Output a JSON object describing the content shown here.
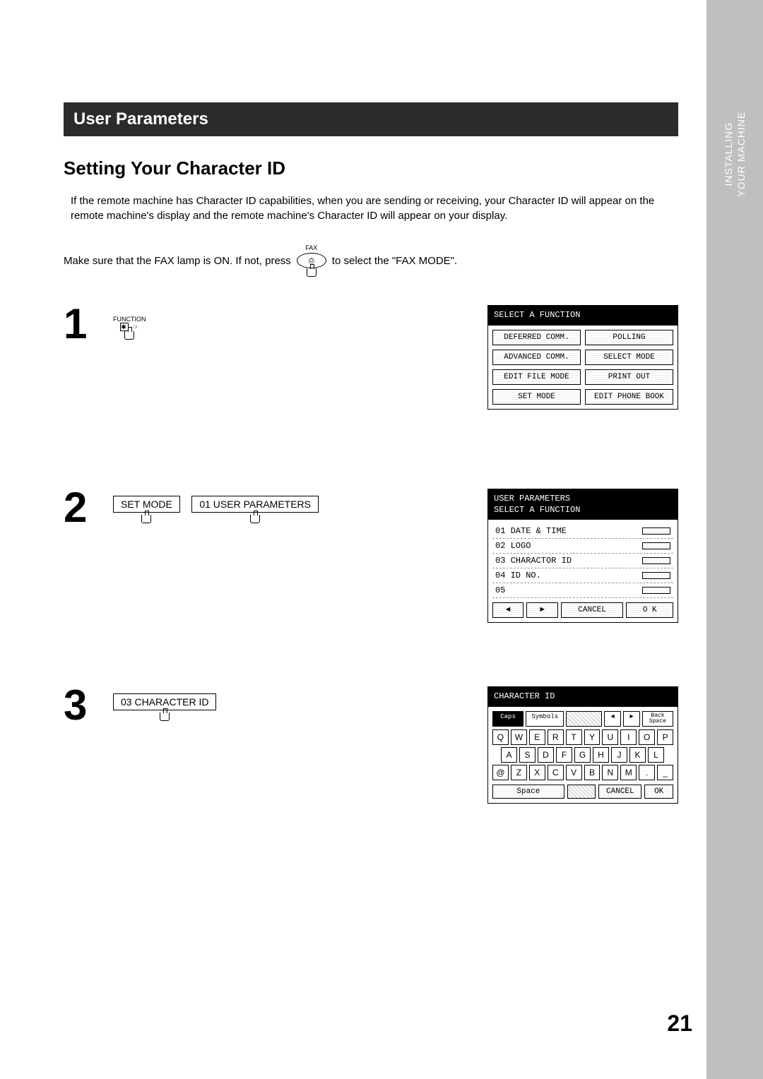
{
  "sideTab": {
    "line1": "INSTALLING",
    "line2": "YOUR MACHINE"
  },
  "header": "User Parameters",
  "subhead": "Setting Your Character ID",
  "intro": "If the remote machine has Character ID capabilities, when you are sending or receiving, your Character ID will appear on the remote machine's display and the remote machine's Character ID will appear on your display.",
  "faxLine": {
    "pre": "Make sure that the FAX lamp is ON.  If not, press",
    "btnTop": "FAX",
    "post": "to select the \"FAX MODE\"."
  },
  "step1": {
    "num": "1",
    "funcLabel": "FUNCTION",
    "screenTitle": "SELECT A FUNCTION",
    "cells": [
      "DEFERRED COMM.",
      "POLLING",
      "ADVANCED COMM.",
      "SELECT MODE",
      "EDIT FILE MODE",
      "PRINT OUT",
      "SET MODE",
      "EDIT PHONE BOOK"
    ]
  },
  "step2": {
    "num": "2",
    "btn1": "SET MODE",
    "btn2": "01  USER PARAMETERS",
    "screenTitle1": "USER PARAMETERS",
    "screenTitle2": "SELECT A FUNCTION",
    "items": [
      "01 DATE & TIME",
      "02 LOGO",
      "03 CHARACTOR ID",
      "04 ID NO.",
      "05"
    ],
    "nav": {
      "left": "◄",
      "right": "►",
      "cancel": "CANCEL",
      "ok": "O K"
    }
  },
  "step3": {
    "num": "3",
    "btn": "03 CHARACTER ID",
    "screenTitle": "CHARACTER ID",
    "topKeys": {
      "caps": "Caps",
      "symbols": "Symbols",
      "left": "◄",
      "right": "►",
      "back": "Back Space"
    },
    "row1": [
      "Q",
      "W",
      "E",
      "R",
      "T",
      "Y",
      "U",
      "I",
      "O",
      "P"
    ],
    "row2": [
      "A",
      "S",
      "D",
      "F",
      "G",
      "H",
      "J",
      "K",
      "L"
    ],
    "row3": [
      "@",
      "Z",
      "X",
      "C",
      "V",
      "B",
      "N",
      "M",
      ".",
      "_"
    ],
    "bottom": {
      "space": "Space",
      "cancel": "CANCEL",
      "ok": "OK"
    }
  },
  "pageNum": "21"
}
